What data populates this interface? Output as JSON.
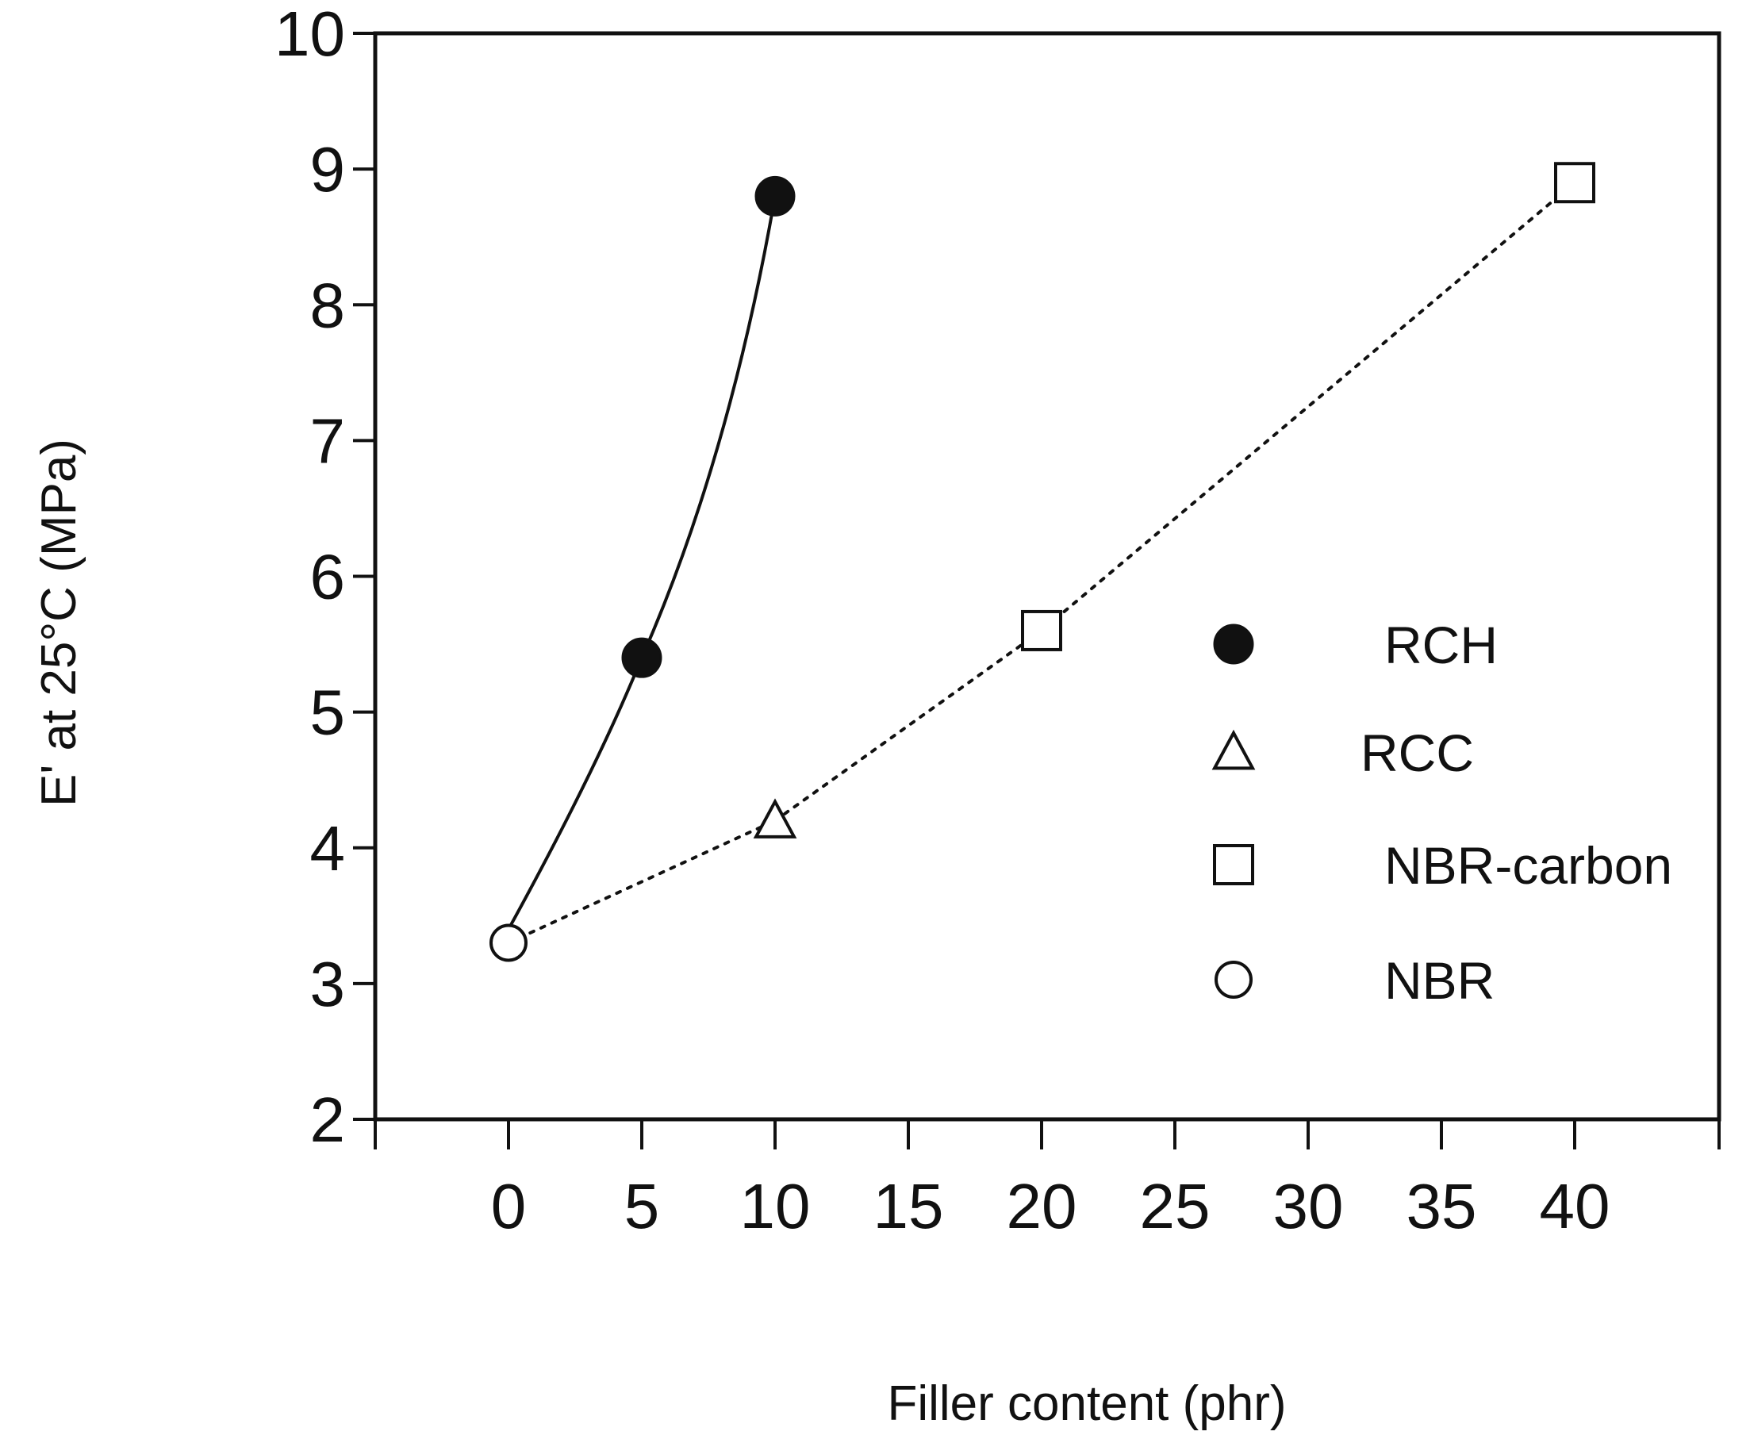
{
  "chart_data": {
    "type": "scatter",
    "xlabel": "Filler content (phr)",
    "ylabel": "E' at 25°C  (MPa)",
    "xlim": [
      -5,
      45
    ],
    "ylim": [
      2,
      10
    ],
    "xticks": [
      0,
      5,
      10,
      15,
      20,
      25,
      30,
      35,
      40
    ],
    "yticks": [
      2,
      3,
      4,
      5,
      6,
      7,
      8,
      9,
      10
    ],
    "grid": false,
    "legend_position": "right",
    "series": [
      {
        "name": "RCH",
        "marker": "filled-circle",
        "line": "solid",
        "points": [
          [
            0,
            3.4
          ],
          [
            5,
            5.4
          ],
          [
            10,
            8.8
          ]
        ]
      },
      {
        "name": "RCC",
        "marker": "open-triangle",
        "line": "dotted",
        "points": [
          [
            0,
            3.3
          ],
          [
            10,
            4.2
          ]
        ]
      },
      {
        "name": "NBR-carbon",
        "marker": "open-square",
        "line": "dotted",
        "points": [
          [
            10,
            4.2
          ],
          [
            20,
            5.6
          ],
          [
            40,
            8.9
          ]
        ]
      },
      {
        "name": "NBR",
        "marker": "open-circle",
        "line": "none",
        "points": [
          [
            0,
            3.3
          ]
        ]
      }
    ]
  }
}
